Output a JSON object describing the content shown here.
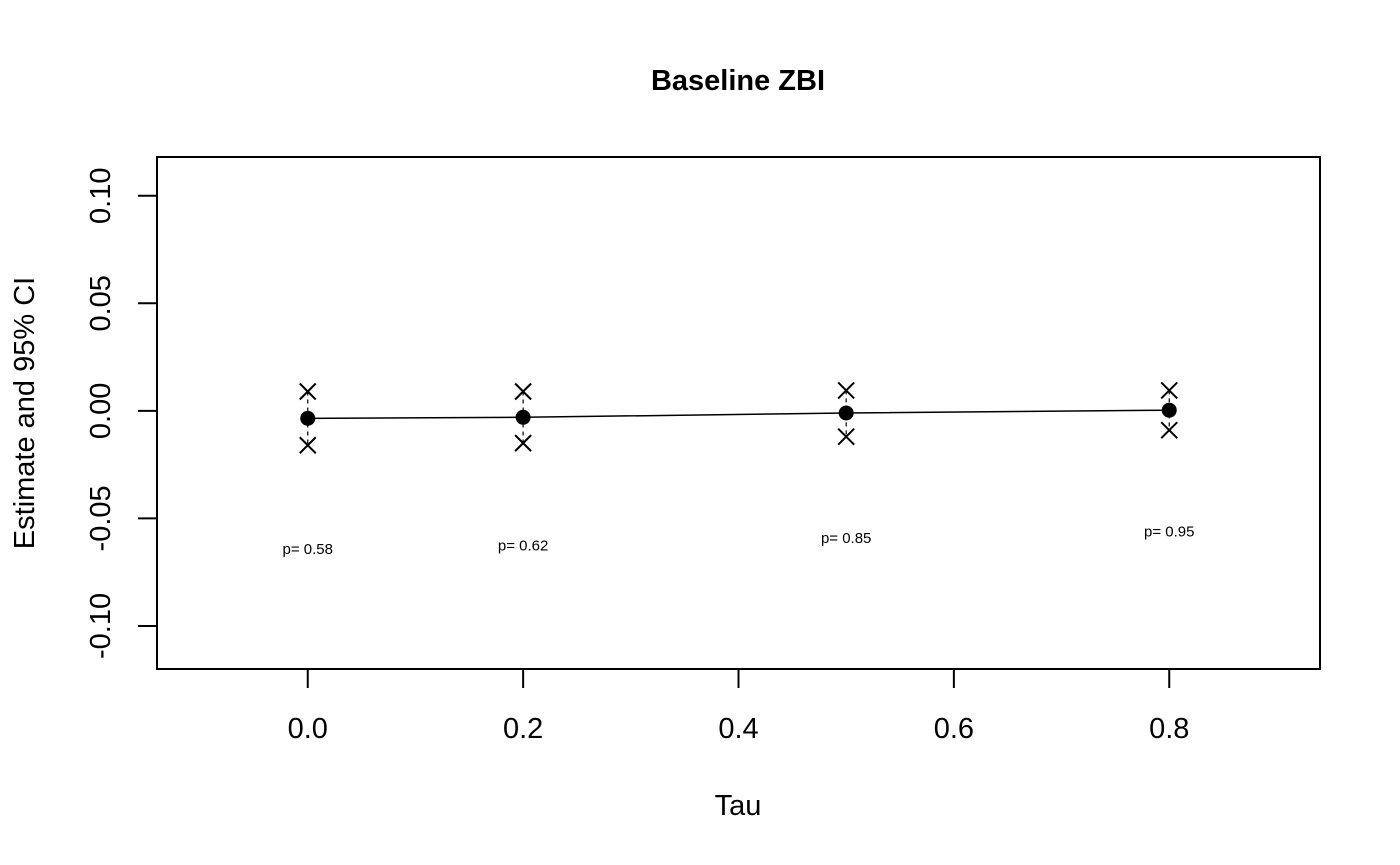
{
  "chart_data": {
    "type": "scatter",
    "title": "Baseline ZBI",
    "xlabel": "Tau",
    "ylabel": "Estimate and 95% CI",
    "xlim": [
      -0.14,
      0.94
    ],
    "ylim": [
      -0.12,
      0.118
    ],
    "x_ticks": [
      0.0,
      0.2,
      0.4,
      0.6,
      0.8
    ],
    "x_tick_labels": [
      "0.0",
      "0.2",
      "0.4",
      "0.6",
      "0.8"
    ],
    "y_ticks": [
      -0.1,
      -0.05,
      0.0,
      0.05,
      0.1
    ],
    "y_tick_labels": [
      "-0.10",
      "-0.05",
      "0.00",
      "0.05",
      "0.10"
    ],
    "grid": false,
    "points": [
      {
        "tau": 0.0,
        "estimate": -0.0035,
        "ci_lower": -0.016,
        "ci_upper": 0.009,
        "p_label": "p= 0.58",
        "p_label_y": -0.0665
      },
      {
        "tau": 0.2,
        "estimate": -0.003,
        "ci_lower": -0.015,
        "ci_upper": 0.009,
        "p_label": "p= 0.62",
        "p_label_y": -0.065
      },
      {
        "tau": 0.5,
        "estimate": -0.001,
        "ci_lower": -0.012,
        "ci_upper": 0.0095,
        "p_label": "p= 0.85",
        "p_label_y": -0.0615
      },
      {
        "tau": 0.8,
        "estimate": 0.0003,
        "ci_lower": -0.009,
        "ci_upper": 0.0095,
        "p_label": "p= 0.95",
        "p_label_y": -0.0585
      }
    ]
  }
}
